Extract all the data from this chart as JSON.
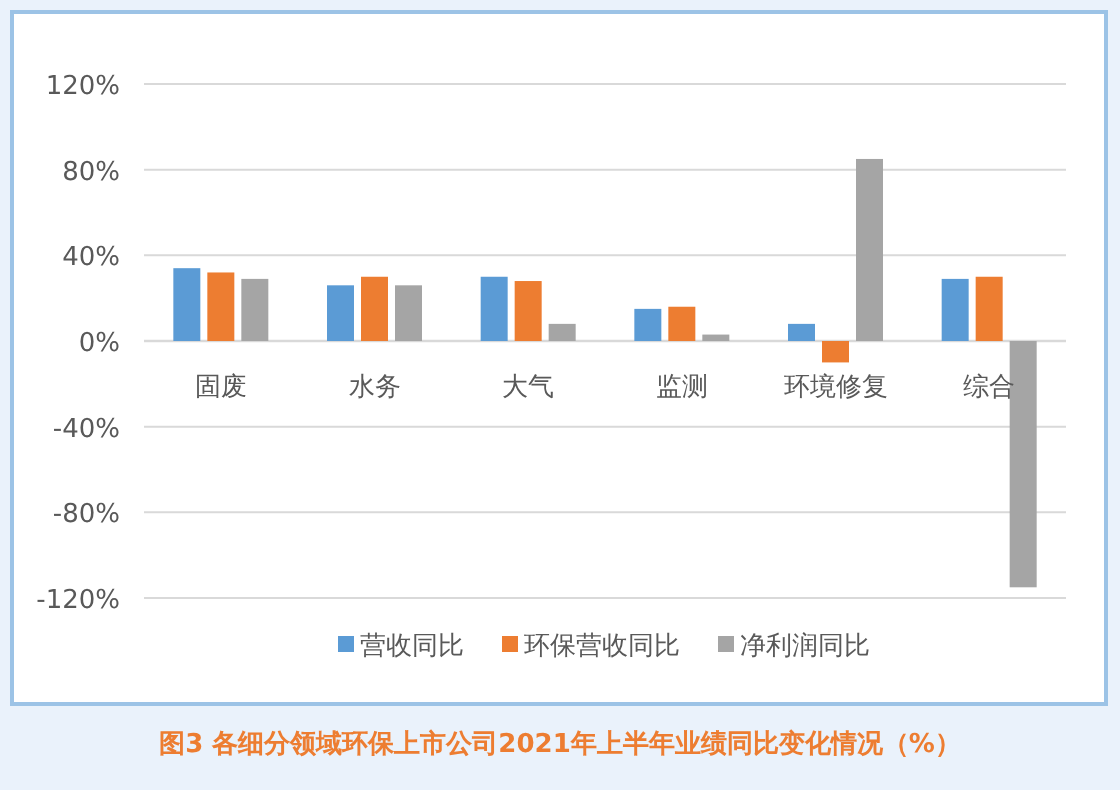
{
  "chart_data": {
    "type": "bar",
    "title": "图3 各细分领域环保上市公司2021年上半年业绩同比变化情况（%）",
    "categories": [
      "固废",
      "水务",
      "大气",
      "监测",
      "环境修复",
      "综合"
    ],
    "series": [
      {
        "name": "营收同比",
        "color": "#5b9bd5",
        "values": [
          34,
          26,
          30,
          15,
          8,
          29
        ]
      },
      {
        "name": "环保营收同比",
        "color": "#ed7d31",
        "values": [
          32,
          30,
          28,
          16,
          -10,
          30
        ]
      },
      {
        "name": "净利润同比",
        "color": "#a5a5a5",
        "values": [
          29,
          26,
          8,
          3,
          85,
          -115
        ]
      }
    ],
    "ylim": [
      -120,
      120
    ],
    "yticks": [
      {
        "value": -120,
        "label": "-120%"
      },
      {
        "value": -80,
        "label": "-80%"
      },
      {
        "value": -40,
        "label": "-40%"
      },
      {
        "value": 0,
        "label": "0%"
      },
      {
        "value": 40,
        "label": "40%"
      },
      {
        "value": 80,
        "label": "80%"
      },
      {
        "value": 120,
        "label": "120%"
      }
    ],
    "grid": "y",
    "legend": "bottom"
  }
}
